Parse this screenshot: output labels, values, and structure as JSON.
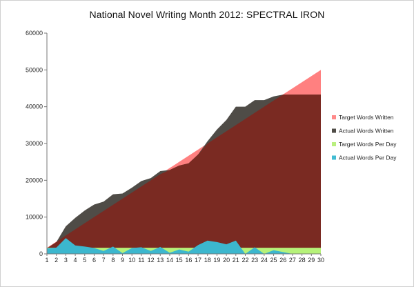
{
  "chart_data": {
    "type": "area",
    "title": "National Novel Writing Month 2012: SPECTRAL IRON",
    "xlabel": "",
    "ylabel": "",
    "x": [
      1,
      2,
      3,
      4,
      5,
      6,
      7,
      8,
      9,
      10,
      11,
      12,
      13,
      14,
      15,
      16,
      17,
      18,
      19,
      20,
      21,
      22,
      23,
      24,
      25,
      26,
      27,
      28,
      29,
      30
    ],
    "ylim": [
      0,
      60000
    ],
    "yticks": [
      0,
      10000,
      20000,
      30000,
      40000,
      50000,
      60000
    ],
    "grid": false,
    "legend_position": "right",
    "series": [
      {
        "name": "Target Words Written",
        "color": "#ff8080",
        "values": [
          1667,
          3333,
          5000,
          6667,
          8333,
          10000,
          11667,
          13333,
          15000,
          16667,
          18333,
          20000,
          21667,
          23333,
          25000,
          26667,
          28333,
          30000,
          31667,
          33333,
          35000,
          36667,
          38333,
          40000,
          41667,
          43333,
          45000,
          46667,
          48333,
          50000
        ]
      },
      {
        "name": "Actual Words Written",
        "color": "#555555",
        "values": [
          1500,
          3200,
          7500,
          9800,
          11800,
          13400,
          14200,
          16200,
          16400,
          18000,
          19800,
          20600,
          22500,
          22800,
          24000,
          24600,
          27000,
          30600,
          33800,
          36400,
          40000,
          40000,
          41800,
          41800,
          42800,
          43300,
          43300,
          43300,
          43300,
          43300
        ]
      },
      {
        "name": "Target Words Per Day",
        "color": "#b6f279",
        "values": [
          1667,
          1667,
          1667,
          1667,
          1667,
          1667,
          1667,
          1667,
          1667,
          1667,
          1667,
          1667,
          1667,
          1667,
          1667,
          1667,
          1667,
          1667,
          1667,
          1667,
          1667,
          1667,
          1667,
          1667,
          1667,
          1667,
          1667,
          1667,
          1667,
          1667
        ]
      },
      {
        "name": "Actual Words Per Day",
        "color": "#3cb7ce",
        "values": [
          1500,
          1700,
          4300,
          2300,
          2000,
          1600,
          800,
          2000,
          200,
          1600,
          1800,
          800,
          1900,
          300,
          1200,
          600,
          2400,
          3600,
          3200,
          2600,
          3600,
          0,
          1800,
          0,
          1000,
          500,
          0,
          0,
          0,
          0
        ]
      }
    ]
  }
}
